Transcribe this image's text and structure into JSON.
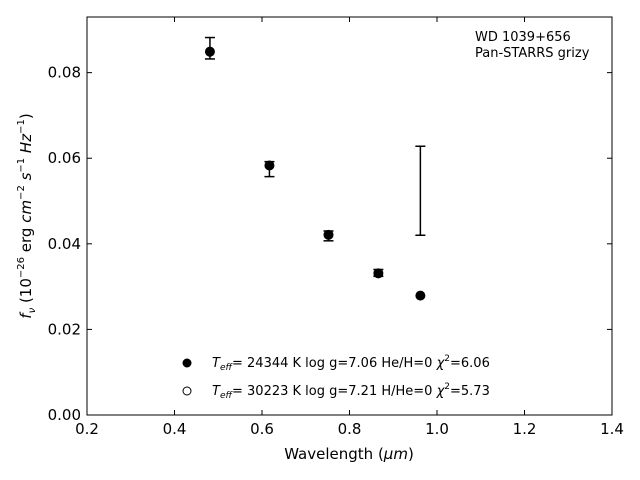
{
  "chart_data": {
    "type": "scatter",
    "xlim": [
      0.2,
      1.4
    ],
    "ylim": [
      0.0,
      0.093
    ],
    "x_ticks": [
      "0.2",
      "0.4",
      "0.6",
      "0.8",
      "1.0",
      "1.2",
      "1.4"
    ],
    "y_ticks": [
      "0.00",
      "0.02",
      "0.04",
      "0.06",
      "0.08"
    ],
    "ylabel_prefix": "f",
    "ylabel_sub": "ν",
    "ylabel_rest": " (10",
    "ylabel_sup": "−26",
    "ylabel_unit_a": " erg ",
    "ylabel_cm": "cm",
    "ylabel_cm_exp": "−2",
    "ylabel_s": " s",
    "ylabel_s_exp": "−1",
    "ylabel_hz": " Hz",
    "ylabel_hz_exp": "−1",
    "ylabel_close": ")",
    "xlabel_main": "Wavelength (",
    "xlabel_unit": "μm",
    "xlabel_close": ")",
    "annotation_object": "WD 1039+656",
    "annotation_survey": "Pan-STARRS grizy",
    "series": [
      {
        "marker": "filled",
        "points": [
          {
            "x": 0.481,
            "y": 0.0849,
            "err_low": 0.0017,
            "err_high": 0.0033
          },
          {
            "x": 0.617,
            "y": 0.0583,
            "err_low": 0.0026,
            "err_high": 0.0009
          },
          {
            "x": 0.752,
            "y": 0.0421,
            "err_low": 0.0014,
            "err_high": 0.0009
          },
          {
            "x": 0.866,
            "y": 0.0331,
            "err_low": 0.0007,
            "err_high": 0.0009
          },
          {
            "x": 0.962,
            "y": 0.0279,
            "err_low": 0,
            "err_high": 0
          }
        ]
      }
    ],
    "lone_errorbar": {
      "x": 0.962,
      "y_low": 0.042,
      "y_high": 0.0628
    },
    "legend": [
      {
        "marker": "filled",
        "teff": "T",
        "teff_sub": "eff",
        "text": "= 24344 K  log g=7.06  He/H=0  ",
        "chi": "χ",
        "chi_sup": "2",
        "chi_val": "=6.06"
      },
      {
        "marker": "open",
        "teff": "T",
        "teff_sub": "eff",
        "text": "= 30223 K  log g=7.21  H/He=0  ",
        "chi": "χ",
        "chi_sup": "2",
        "chi_val": "=5.73"
      }
    ]
  }
}
